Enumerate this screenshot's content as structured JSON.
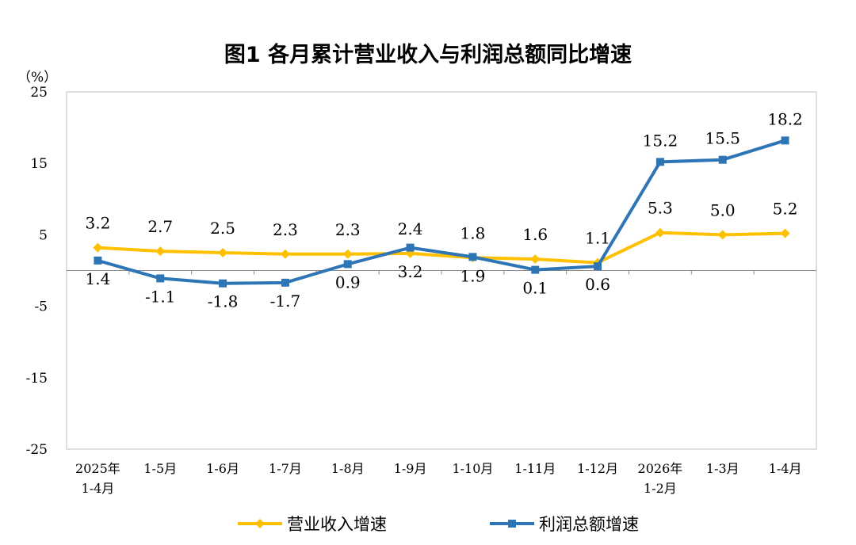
{
  "chart_data": {
    "type": "line",
    "title": "图1  各月累计营业收入与利润总额同比增速",
    "yunit": "（%）",
    "ylim": [
      -25,
      25
    ],
    "yticks": [
      25,
      15,
      5,
      -5,
      -15,
      -25
    ],
    "categories": [
      [
        "2025年",
        "1-4月"
      ],
      [
        "1-5月"
      ],
      [
        "1-6月"
      ],
      [
        "1-7月"
      ],
      [
        "1-8月"
      ],
      [
        "1-9月"
      ],
      [
        "1-10月"
      ],
      [
        "1-11月"
      ],
      [
        "1-12月"
      ],
      [
        "2026年",
        "1-2月"
      ],
      [
        "1-3月"
      ],
      [
        "1-4月"
      ]
    ],
    "series": [
      {
        "name": "营业收入增速",
        "color": "#FFC000",
        "marker": "diamond",
        "label_position": "above",
        "values": [
          3.2,
          2.7,
          2.5,
          2.3,
          2.3,
          2.4,
          1.8,
          1.6,
          1.1,
          5.3,
          5.0,
          5.2
        ],
        "labels": [
          "3.2",
          "2.7",
          "2.5",
          "2.3",
          "2.3",
          "2.4",
          "1.8",
          "1.6",
          "1.1",
          "5.3",
          "5.0",
          "5.2"
        ]
      },
      {
        "name": "利润总额增速",
        "color": "#2E75B6",
        "marker": "square",
        "label_position": "mixed",
        "values": [
          1.4,
          -1.1,
          -1.8,
          -1.7,
          0.9,
          3.2,
          1.9,
          0.1,
          0.6,
          15.2,
          15.5,
          18.2
        ],
        "labels": [
          "1.4",
          "-1.1",
          "-1.8",
          "-1.7",
          "0.9",
          "3.2",
          "1.9",
          "0.1",
          "0.6",
          "15.2",
          "15.5",
          "18.2"
        ]
      }
    ],
    "legend_position": "bottom",
    "grid": false
  }
}
